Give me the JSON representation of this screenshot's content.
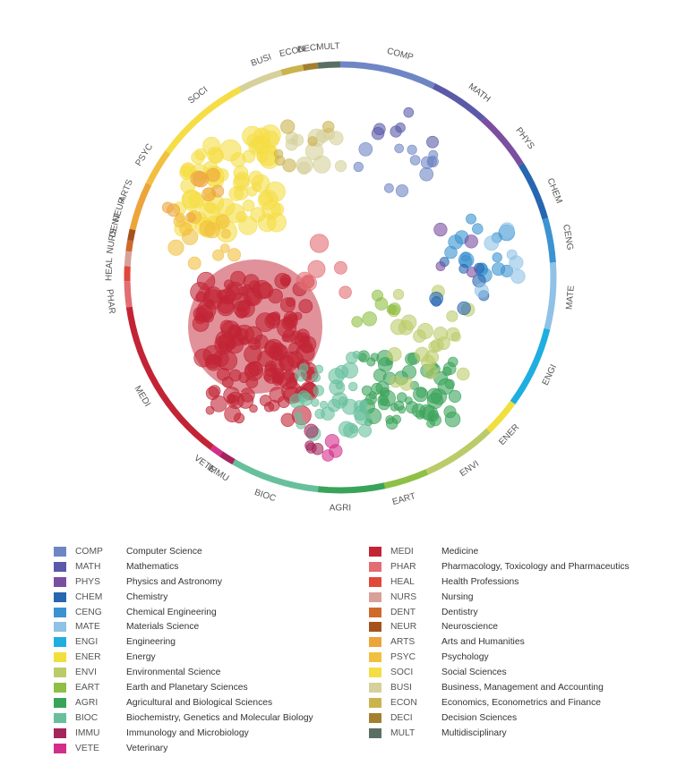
{
  "subjects": [
    {
      "code": "COMP",
      "name": "Computer Science",
      "color": "#6f86c5"
    },
    {
      "code": "MATH",
      "name": "Mathematics",
      "color": "#5a5aa8"
    },
    {
      "code": "PHYS",
      "name": "Physics and Astronomy",
      "color": "#7a4fa0"
    },
    {
      "code": "CHEM",
      "name": "Chemistry",
      "color": "#2766b0"
    },
    {
      "code": "CENG",
      "name": "Chemical Engineering",
      "color": "#3b93d1"
    },
    {
      "code": "MATE",
      "name": "Materials Science",
      "color": "#8fc2e6"
    },
    {
      "code": "ENGI",
      "name": "Engineering",
      "color": "#1eaee0"
    },
    {
      "code": "ENER",
      "name": "Energy",
      "color": "#f0df3c"
    },
    {
      "code": "ENVI",
      "name": "Environmental Science",
      "color": "#bccb6a"
    },
    {
      "code": "EART",
      "name": "Earth and Planetary Sciences",
      "color": "#8ec045"
    },
    {
      "code": "AGRI",
      "name": "Agricultural and Biological Sciences",
      "color": "#3aa35a"
    },
    {
      "code": "BIOC",
      "name": "Biochemistry, Genetics and Molecular Biology",
      "color": "#68bf9c"
    },
    {
      "code": "IMMU",
      "name": "Immunology and Microbiology",
      "color": "#a4255c"
    },
    {
      "code": "VETE",
      "name": "Veterinary",
      "color": "#d22f8a"
    },
    {
      "code": "MEDI",
      "name": "Medicine",
      "color": "#c22436"
    },
    {
      "code": "PHAR",
      "name": "Pharmacology, Toxicology and Pharmaceutics",
      "color": "#e26d72"
    },
    {
      "code": "HEAL",
      "name": "Health Professions",
      "color": "#e0483a"
    },
    {
      "code": "NURS",
      "name": "Nursing",
      "color": "#d8a097"
    },
    {
      "code": "DENT",
      "name": "Dentistry",
      "color": "#cf6a2c"
    },
    {
      "code": "NEUR",
      "name": "Neuroscience",
      "color": "#a5521d"
    },
    {
      "code": "ARTS",
      "name": "Arts and Humanities",
      "color": "#eda43a"
    },
    {
      "code": "PSYC",
      "name": "Psychology",
      "color": "#f2c040"
    },
    {
      "code": "SOCI",
      "name": "Social Sciences",
      "color": "#f5dd45"
    },
    {
      "code": "BUSI",
      "name": "Business, Management and Accounting",
      "color": "#d6d19b"
    },
    {
      "code": "ECON",
      "name": "Economics, Econometrics and Finance",
      "color": "#cbb34e"
    },
    {
      "code": "DECI",
      "name": "Decision Sciences",
      "color": "#a3802f"
    },
    {
      "code": "MULT",
      "name": "Multidisciplinary",
      "color": "#5a6f63"
    }
  ],
  "ring_segments": [
    {
      "code": "COMP",
      "start": 0,
      "end": 26
    },
    {
      "code": "MATH",
      "start": 26,
      "end": 42
    },
    {
      "code": "PHYS",
      "start": 42,
      "end": 58
    },
    {
      "code": "CHEM",
      "start": 58,
      "end": 74
    },
    {
      "code": "CENG",
      "start": 74,
      "end": 86
    },
    {
      "code": "MATE",
      "start": 86,
      "end": 104
    },
    {
      "code": "ENGI",
      "start": 104,
      "end": 126
    },
    {
      "code": "ENER",
      "start": 126,
      "end": 136
    },
    {
      "code": "ENVI",
      "start": 136,
      "end": 156
    },
    {
      "code": "EART",
      "start": 156,
      "end": 168
    },
    {
      "code": "AGRI",
      "start": 168,
      "end": 186
    },
    {
      "code": "BIOC",
      "start": 186,
      "end": 210
    },
    {
      "code": "IMMU",
      "start": 210,
      "end": 214
    },
    {
      "code": "VETE",
      "start": 214,
      "end": 217
    },
    {
      "code": "MEDI",
      "start": 217,
      "end": 262
    },
    {
      "code": "PHAR",
      "start": 262,
      "end": 269
    },
    {
      "code": "HEAL",
      "start": 269,
      "end": 273
    },
    {
      "code": "NURS",
      "start": 273,
      "end": 277
    },
    {
      "code": "DENT",
      "start": 277,
      "end": 280
    },
    {
      "code": "NEUR",
      "start": 280,
      "end": 283
    },
    {
      "code": "ARTS",
      "start": 283,
      "end": 296
    },
    {
      "code": "PSYC",
      "start": 296,
      "end": 306
    },
    {
      "code": "SOCI",
      "start": 306,
      "end": 332
    },
    {
      "code": "BUSI",
      "start": 332,
      "end": 344
    },
    {
      "code": "ECON",
      "start": 344,
      "end": 350
    },
    {
      "code": "DECI",
      "start": 350,
      "end": 354
    },
    {
      "code": "MULT",
      "start": 354,
      "end": 360
    }
  ],
  "ring_labels": [
    {
      "text": "COMP",
      "angle": 15
    },
    {
      "text": "MATH",
      "angle": 37
    },
    {
      "text": "PHYS",
      "angle": 53
    },
    {
      "text": "CHEM",
      "angle": 68
    },
    {
      "text": "CENG",
      "angle": 80
    },
    {
      "text": "MATE",
      "angle": 95
    },
    {
      "text": "ENGI",
      "angle": 115
    },
    {
      "text": "ENER",
      "angle": 133
    },
    {
      "text": "ENVI",
      "angle": 146
    },
    {
      "text": "EART",
      "angle": 164
    },
    {
      "text": "AGRI",
      "angle": 180
    },
    {
      "text": "BIOC",
      "angle": 199
    },
    {
      "text": "IMMU",
      "angle": 212
    },
    {
      "text": "VETE",
      "angle": 216
    },
    {
      "text": "MEDI",
      "angle": 239
    },
    {
      "text": "PHAR",
      "angle": 264
    },
    {
      "text": "HEAL",
      "angle": 272
    },
    {
      "text": "NURS",
      "angle": 279
    },
    {
      "text": "DENT",
      "angle": 283
    },
    {
      "text": "NEUR",
      "angle": 287
    },
    {
      "text": "ARTS",
      "angle": 292
    },
    {
      "text": "PSYC",
      "angle": 302
    },
    {
      "text": "SOCI",
      "angle": 322
    },
    {
      "text": "BUSI",
      "angle": 340
    },
    {
      "text": "ECON",
      "angle": 348
    },
    {
      "text": "DECI",
      "angle": 352
    },
    {
      "text": "MULT",
      "angle": 357
    }
  ],
  "clusters": [
    {
      "code": "MEDI",
      "count": 150,
      "r": [
        4,
        11
      ]
    },
    {
      "code": "SOCI",
      "count": 70,
      "r": [
        5,
        12
      ]
    },
    {
      "code": "AGRI",
      "count": 60,
      "r": [
        4,
        9
      ]
    },
    {
      "code": "BIOC",
      "count": 35,
      "r": [
        4,
        9
      ]
    },
    {
      "code": "ENVI",
      "count": 24,
      "r": [
        5,
        9
      ]
    },
    {
      "code": "COMP",
      "count": 12,
      "r": [
        5,
        8
      ]
    },
    {
      "code": "CENG",
      "count": 16,
      "r": [
        5,
        9
      ]
    },
    {
      "code": "BUSI",
      "count": 12,
      "r": [
        6,
        10
      ]
    },
    {
      "code": "PSYC",
      "count": 14,
      "r": [
        5,
        9
      ]
    },
    {
      "code": "ARTS",
      "count": 8,
      "r": [
        5,
        9
      ]
    },
    {
      "code": "PHAR",
      "count": 6,
      "r": [
        6,
        11
      ]
    },
    {
      "code": "CHEM",
      "count": 8,
      "r": [
        5,
        8
      ]
    },
    {
      "code": "ECON",
      "count": 6,
      "r": [
        5,
        8
      ]
    },
    {
      "code": "MATH",
      "count": 6,
      "r": [
        5,
        8
      ]
    },
    {
      "code": "PHYS",
      "count": 4,
      "r": [
        5,
        8
      ]
    },
    {
      "code": "MATE",
      "count": 6,
      "r": [
        5,
        8
      ]
    },
    {
      "code": "VETE",
      "count": 3,
      "r": [
        6,
        10
      ]
    },
    {
      "code": "EART",
      "count": 6,
      "r": [
        5,
        8
      ]
    },
    {
      "code": "IMMU",
      "count": 4,
      "r": [
        5,
        9
      ]
    }
  ],
  "large_bubble": {
    "code": "MEDI",
    "weight": 1.0
  }
}
